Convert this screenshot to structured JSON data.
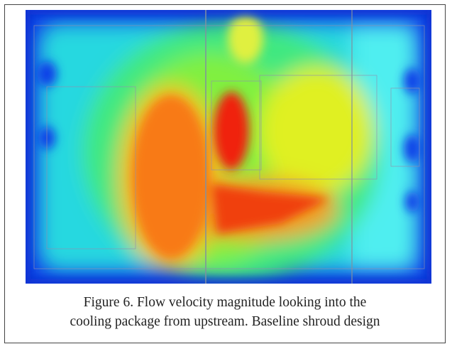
{
  "figure": {
    "caption_lines": [
      "Figure 6. Flow velocity magnitude looking into the",
      "cooling package from upstream. Baseline shroud design"
    ]
  }
}
